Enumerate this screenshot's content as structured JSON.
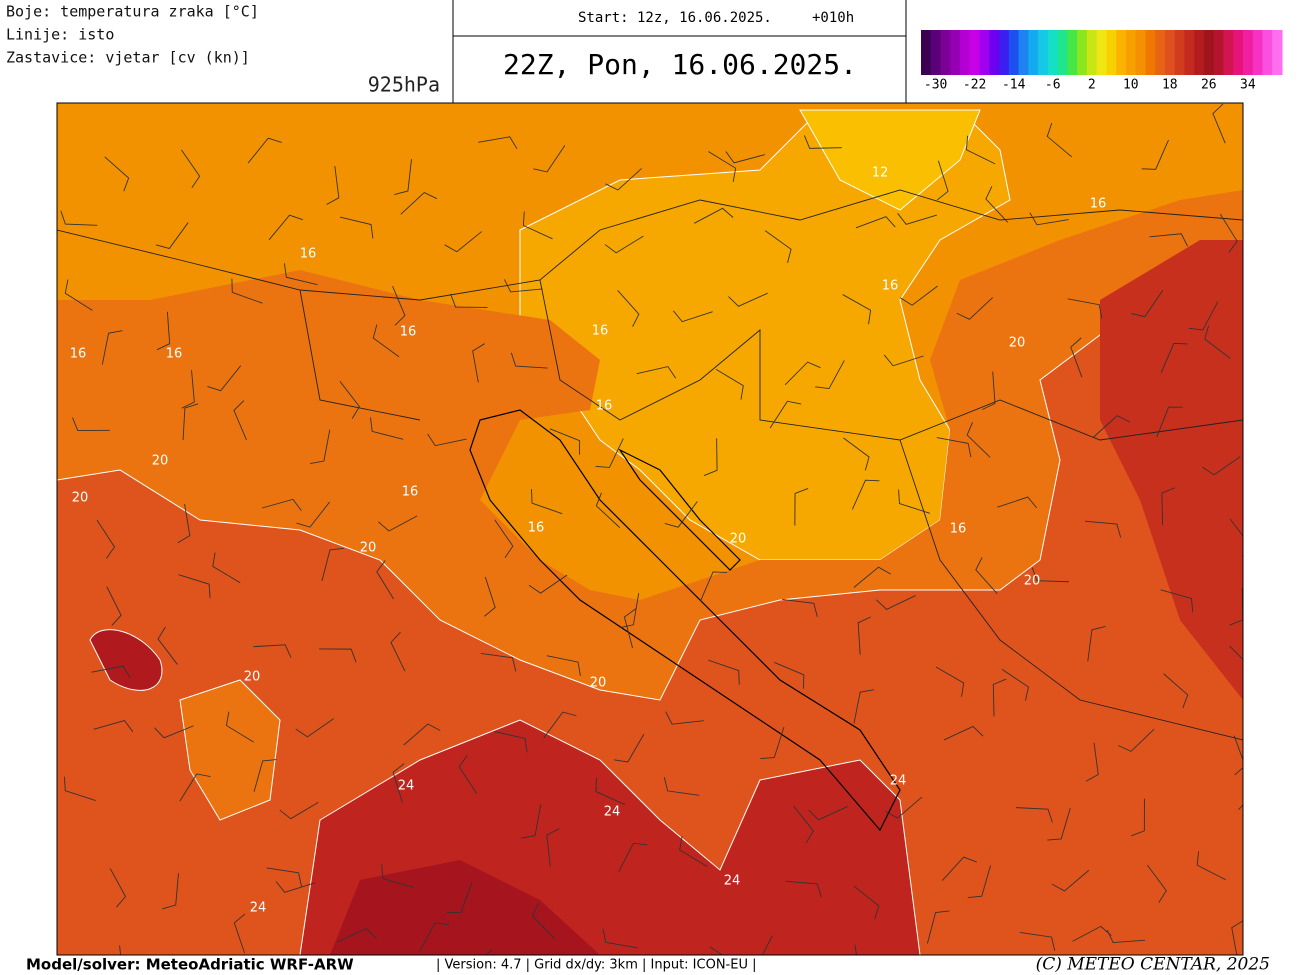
{
  "header": {
    "legend_lines": [
      "Boje: temperatura zraka [°C]",
      "Linije: isto",
      "Zastavice: vjetar [cv (kn)]"
    ],
    "level": "925hPa",
    "run": "Start: 12z, 16.06.2025.",
    "lead": "+010h",
    "valid": "22Z, Pon, 16.06.2025."
  },
  "colorbar": {
    "range": [
      -33,
      41
    ],
    "ticks": [
      -30,
      -22,
      -14,
      -6,
      2,
      10,
      18,
      26,
      34
    ],
    "colors": [
      "#3c0050",
      "#5a0078",
      "#7a0096",
      "#9600b4",
      "#b400d2",
      "#c800e6",
      "#a000f0",
      "#6e00f0",
      "#3c1ef0",
      "#1e50f0",
      "#1e82f0",
      "#14aaf0",
      "#14c8e6",
      "#14e0c8",
      "#1ee68c",
      "#46e646",
      "#8ce61e",
      "#c8e614",
      "#f0e614",
      "#f8d200",
      "#fab400",
      "#f8a000",
      "#f59000",
      "#f07800",
      "#e86414",
      "#e0501e",
      "#d23c1e",
      "#c42a1e",
      "#b41c1e",
      "#a0141e",
      "#b4142d",
      "#d21450",
      "#e61478",
      "#f01ea0",
      "#f532c3",
      "#fa50e1",
      "#ff6ef0"
    ]
  },
  "map": {
    "contour_labels": [
      12,
      16,
      16,
      16,
      16,
      16,
      16,
      16,
      20,
      16,
      20,
      20,
      16,
      16,
      16,
      20,
      20,
      20,
      20,
      20,
      24,
      24,
      24,
      24,
      24
    ]
  },
  "footer": {
    "model": "Model/solver: MeteoAdriatic WRF-ARW",
    "info": "| Version: 4.7 | Grid dx/dy: 3km | Input: ICON-EU |",
    "copyright": "(C) METEO CENTAR, 2025"
  }
}
